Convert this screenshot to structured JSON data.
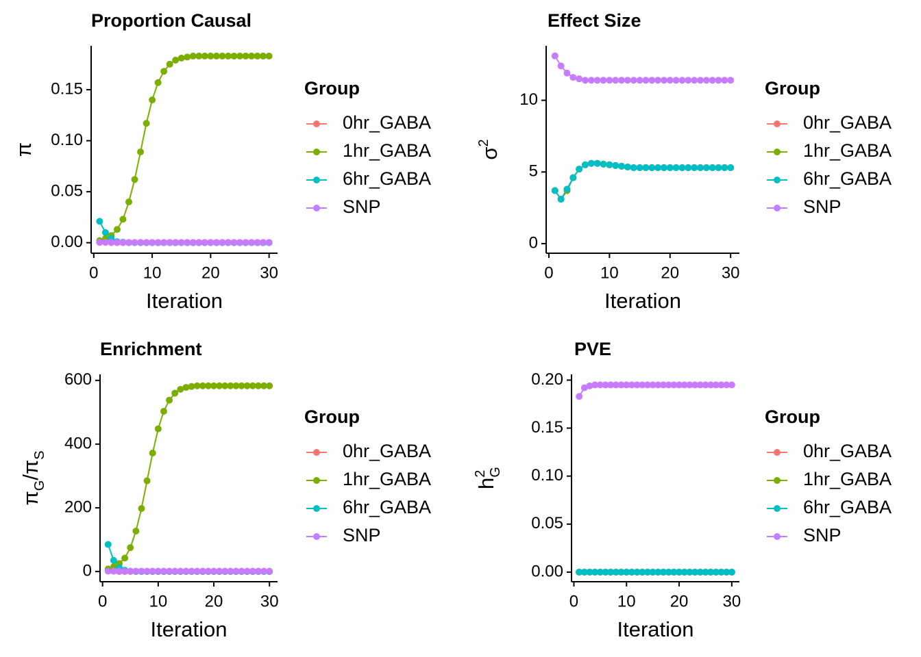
{
  "chart_data": [
    {
      "type": "line",
      "title": "Proportion Causal",
      "x_label": "Iteration",
      "y_label": [
        {
          "text": "π",
          "pos": "base"
        }
      ],
      "legend_title": "Group",
      "x": [
        1,
        2,
        3,
        4,
        5,
        6,
        7,
        8,
        9,
        10,
        11,
        12,
        13,
        14,
        15,
        16,
        17,
        18,
        19,
        20,
        21,
        22,
        23,
        24,
        25,
        26,
        27,
        28,
        29,
        30
      ],
      "xlim": [
        -0.45,
        31.45
      ],
      "xticks": [
        0,
        10,
        20,
        30
      ],
      "ylim": [
        -0.0103,
        0.193
      ],
      "yticks": [
        {
          "value": 0,
          "label": "0.00"
        },
        {
          "value": 0.05,
          "label": "0.05"
        },
        {
          "value": 0.1,
          "label": "0.10"
        },
        {
          "value": 0.15,
          "label": "0.15"
        }
      ],
      "series": [
        {
          "name": "0hr_GABA",
          "color": "#F8766D",
          "values": [
            0.001,
            0.0005,
            0,
            0,
            0,
            0,
            0,
            0,
            0,
            0,
            0,
            0,
            0,
            0,
            0,
            0,
            0,
            0,
            0,
            0,
            0,
            0,
            0,
            0,
            0,
            0,
            0,
            0,
            0,
            0
          ]
        },
        {
          "name": "1hr_GABA",
          "color": "#7CAE00",
          "values": [
            0.002,
            0.004,
            0.007,
            0.013,
            0.023,
            0.04,
            0.062,
            0.089,
            0.117,
            0.14,
            0.157,
            0.168,
            0.175,
            0.179,
            0.181,
            0.182,
            0.183,
            0.183,
            0.183,
            0.183,
            0.183,
            0.183,
            0.183,
            0.183,
            0.183,
            0.183,
            0.183,
            0.183,
            0.183,
            0.183
          ]
        },
        {
          "name": "6hr_GABA",
          "color": "#00BFC4",
          "values": [
            0.021,
            0.01,
            0.004,
            0.001,
            0.0005,
            0,
            0,
            0,
            0,
            0,
            0,
            0,
            0,
            0,
            0,
            0,
            0,
            0,
            0,
            0,
            0,
            0,
            0,
            0,
            0,
            0,
            0,
            0,
            0,
            0
          ]
        },
        {
          "name": "SNP",
          "color": "#C77CFF",
          "values": [
            0.0003,
            0.0003,
            0.0003,
            0.0003,
            0.0003,
            0.0003,
            0.0003,
            0.0003,
            0.0003,
            0.0003,
            0.0003,
            0.0003,
            0.0003,
            0.0003,
            0.0003,
            0.0003,
            0.0003,
            0.0003,
            0.0003,
            0.0003,
            0.0003,
            0.0003,
            0.0003,
            0.0003,
            0.0003,
            0.0003,
            0.0003,
            0.0003,
            0.0003,
            0.0003
          ]
        }
      ]
    },
    {
      "type": "line",
      "title": "Effect Size",
      "x_label": "Iteration",
      "y_label": [
        {
          "text": "σ",
          "pos": "base"
        },
        {
          "text": "2",
          "pos": "sup"
        }
      ],
      "legend_title": "Group",
      "x": [
        1,
        2,
        3,
        4,
        5,
        6,
        7,
        8,
        9,
        10,
        11,
        12,
        13,
        14,
        15,
        16,
        17,
        18,
        19,
        20,
        21,
        22,
        23,
        24,
        25,
        26,
        27,
        28,
        29,
        30
      ],
      "xlim": [
        -0.45,
        31.45
      ],
      "xticks": [
        0,
        10,
        20,
        30
      ],
      "ylim": [
        -0.67,
        13.8
      ],
      "yticks": [
        0,
        5,
        10
      ],
      "series": [
        {
          "name": "0hr_GABA",
          "color": "#F8766D",
          "values": [
            3.7,
            3.1,
            3.7,
            4.6,
            5.2,
            5.5,
            5.6,
            5.6,
            5.55,
            5.5,
            5.45,
            5.4,
            5.35,
            5.3,
            5.3,
            5.3,
            5.3,
            5.3,
            5.3,
            5.3,
            5.3,
            5.3,
            5.3,
            5.3,
            5.3,
            5.3,
            5.3,
            5.3,
            5.3,
            5.3
          ]
        },
        {
          "name": "1hr_GABA",
          "color": "#7CAE00",
          "values": [
            3.7,
            3.1,
            3.7,
            4.6,
            5.2,
            5.5,
            5.6,
            5.6,
            5.55,
            5.5,
            5.45,
            5.4,
            5.35,
            5.3,
            5.3,
            5.3,
            5.3,
            5.3,
            5.3,
            5.3,
            5.3,
            5.3,
            5.3,
            5.3,
            5.3,
            5.3,
            5.3,
            5.3,
            5.3,
            5.3
          ]
        },
        {
          "name": "6hr_GABA",
          "color": "#00BFC4",
          "values": [
            3.7,
            3.1,
            3.8,
            4.6,
            5.2,
            5.5,
            5.6,
            5.6,
            5.55,
            5.5,
            5.45,
            5.4,
            5.35,
            5.3,
            5.3,
            5.3,
            5.3,
            5.3,
            5.3,
            5.3,
            5.3,
            5.3,
            5.3,
            5.3,
            5.3,
            5.3,
            5.3,
            5.3,
            5.3,
            5.3
          ]
        },
        {
          "name": "SNP",
          "color": "#C77CFF",
          "values": [
            13.1,
            12.4,
            11.9,
            11.6,
            11.5,
            11.4,
            11.4,
            11.4,
            11.4,
            11.4,
            11.4,
            11.4,
            11.4,
            11.4,
            11.4,
            11.4,
            11.4,
            11.4,
            11.4,
            11.4,
            11.4,
            11.4,
            11.4,
            11.4,
            11.4,
            11.4,
            11.4,
            11.4,
            11.4,
            11.4
          ]
        }
      ]
    },
    {
      "type": "line",
      "title": "Enrichment",
      "x_label": "Iteration",
      "y_label": [
        {
          "text": "π",
          "pos": "base"
        },
        {
          "text": "G",
          "pos": "sub"
        },
        {
          "text": "/",
          "pos": "base"
        },
        {
          "text": "π",
          "pos": "base"
        },
        {
          "text": "S",
          "pos": "sub"
        }
      ],
      "legend_title": "Group",
      "x": [
        1,
        2,
        3,
        4,
        5,
        6,
        7,
        8,
        9,
        10,
        11,
        12,
        13,
        14,
        15,
        16,
        17,
        18,
        19,
        20,
        21,
        22,
        23,
        24,
        25,
        26,
        27,
        28,
        29,
        30
      ],
      "xlim": [
        -0.45,
        31.45
      ],
      "xticks": [
        0,
        10,
        20,
        30
      ],
      "ylim": [
        -32,
        619
      ],
      "yticks": [
        0,
        200,
        400,
        600
      ],
      "series": [
        {
          "name": "0hr_GABA",
          "color": "#F8766D",
          "values": [
            2,
            1,
            0,
            0,
            0,
            0,
            0,
            0,
            0,
            0,
            0,
            0,
            0,
            0,
            0,
            0,
            0,
            0,
            0,
            0,
            0,
            0,
            0,
            0,
            0,
            0,
            0,
            0,
            0,
            0
          ]
        },
        {
          "name": "1hr_GABA",
          "color": "#7CAE00",
          "values": [
            8,
            15,
            25,
            42,
            75,
            127,
            198,
            285,
            372,
            448,
            503,
            538,
            560,
            572,
            578,
            581,
            583,
            583,
            583,
            583,
            583,
            583,
            583,
            583,
            583,
            583,
            583,
            583,
            583,
            583
          ]
        },
        {
          "name": "6hr_GABA",
          "color": "#00BFC4",
          "values": [
            85,
            35,
            12,
            4,
            1,
            0,
            0,
            0,
            0,
            0,
            0,
            0,
            0,
            0,
            0,
            0,
            0,
            0,
            0,
            0,
            0,
            0,
            0,
            0,
            0,
            0,
            0,
            0,
            0,
            0
          ]
        },
        {
          "name": "SNP",
          "color": "#C77CFF",
          "values": [
            1,
            1,
            1,
            1,
            1,
            1,
            1,
            1,
            1,
            1,
            1,
            1,
            1,
            1,
            1,
            1,
            1,
            1,
            1,
            1,
            1,
            1,
            1,
            1,
            1,
            1,
            1,
            1,
            1,
            1
          ]
        }
      ]
    },
    {
      "type": "line",
      "title": "PVE",
      "x_label": "Iteration",
      "y_label": [
        {
          "text": "h",
          "pos": "base"
        },
        {
          "text": "2",
          "pos": "sup"
        },
        {
          "text": "G",
          "pos": "sub"
        }
      ],
      "legend_title": "Group",
      "x": [
        1,
        2,
        3,
        4,
        5,
        6,
        7,
        8,
        9,
        10,
        11,
        12,
        13,
        14,
        15,
        16,
        17,
        18,
        19,
        20,
        21,
        22,
        23,
        24,
        25,
        26,
        27,
        28,
        29,
        30
      ],
      "xlim": [
        -0.45,
        31.45
      ],
      "xticks": [
        0,
        10,
        20,
        30
      ],
      "ylim": [
        -0.01,
        0.206
      ],
      "yticks": [
        {
          "value": 0,
          "label": "0.00"
        },
        {
          "value": 0.05,
          "label": "0.05"
        },
        {
          "value": 0.1,
          "label": "0.10"
        },
        {
          "value": 0.15,
          "label": "0.15"
        },
        {
          "value": 0.2,
          "label": "0.20"
        }
      ],
      "series": [
        {
          "name": "0hr_GABA",
          "color": "#F8766D",
          "values": [
            0,
            0,
            0,
            0,
            0,
            0,
            0,
            0,
            0,
            0,
            0,
            0,
            0,
            0,
            0,
            0,
            0,
            0,
            0,
            0,
            0,
            0,
            0,
            0,
            0,
            0,
            0,
            0,
            0,
            0
          ]
        },
        {
          "name": "1hr_GABA",
          "color": "#7CAE00",
          "values": [
            0,
            0,
            0,
            0,
            0,
            0,
            0,
            0,
            0,
            0,
            0,
            0,
            0,
            0,
            0,
            0,
            0,
            0,
            0,
            0,
            0,
            0,
            0,
            0,
            0,
            0,
            0,
            0,
            0,
            0
          ]
        },
        {
          "name": "6hr_GABA",
          "color": "#00BFC4",
          "values": [
            0,
            0,
            0,
            0,
            0,
            0,
            0,
            0,
            0,
            0,
            0,
            0,
            0,
            0,
            0,
            0,
            0,
            0,
            0,
            0,
            0,
            0,
            0,
            0,
            0,
            0,
            0,
            0,
            0,
            0
          ]
        },
        {
          "name": "SNP",
          "color": "#C77CFF",
          "values": [
            0.183,
            0.192,
            0.194,
            0.195,
            0.195,
            0.195,
            0.195,
            0.195,
            0.195,
            0.195,
            0.195,
            0.195,
            0.195,
            0.195,
            0.195,
            0.195,
            0.195,
            0.195,
            0.195,
            0.195,
            0.195,
            0.195,
            0.195,
            0.195,
            0.195,
            0.195,
            0.195,
            0.195,
            0.195,
            0.195
          ]
        }
      ]
    }
  ]
}
